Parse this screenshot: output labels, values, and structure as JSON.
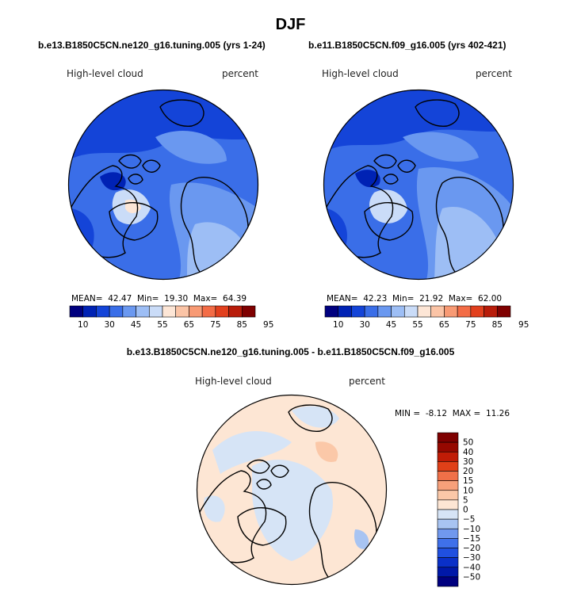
{
  "main_title": "DJF",
  "panels": [
    {
      "case_title": "b.e13.B1850C5CN.ne120_g16.tuning.005 (yrs 1-24)",
      "variable": "High-level cloud",
      "units": "percent",
      "stats": {
        "mean_label": "MEAN=",
        "mean": "42.47",
        "min_label": "Min=",
        "min": "19.30",
        "max_label": "Max=",
        "max": "64.39"
      }
    },
    {
      "case_title": "b.e11.B1850C5CN.f09_g16.005 (yrs 402-421)",
      "variable": "High-level cloud",
      "units": "percent",
      "stats": {
        "mean_label": "MEAN=",
        "mean": "42.23",
        "min_label": "Min=",
        "min": "21.92",
        "max_label": "Max=",
        "max": "62.00"
      }
    }
  ],
  "difference": {
    "title": "b.e13.B1850C5CN.ne120_g16.tuning.005 - b.e11.B1850C5CN.f09_g16.005",
    "variable": "High-level cloud",
    "units": "percent",
    "stats": {
      "min_label": "MIN =",
      "min": "-8.12",
      "max_label": "MAX =",
      "max": "11.26"
    }
  },
  "chart_data": [
    {
      "type": "heatmap",
      "projection": "north-polar-stereographic",
      "title": "b.e13.B1850C5CN.ne120_g16.tuning.005 (yrs 1-24)",
      "series": [
        {
          "name": "High-level cloud",
          "units": "percent",
          "mean": 42.47,
          "min": 19.3,
          "max": 64.39
        }
      ],
      "colorbar": {
        "orientation": "horizontal",
        "levels": [
          10,
          30,
          45,
          55,
          65,
          75,
          85,
          95
        ],
        "tick_labels": [
          "10",
          "30",
          "45",
          "55",
          "65",
          "75",
          "85",
          "95"
        ],
        "colors": [
          "#00007f",
          "#0022b4",
          "#1444d8",
          "#3a6ee8",
          "#6a98f0",
          "#9dbef5",
          "#cadcf8",
          "#fde6d6",
          "#fbc4a6",
          "#f89a74",
          "#f36c46",
          "#e2401e",
          "#b81c0a",
          "#7f0000"
        ]
      }
    },
    {
      "type": "heatmap",
      "projection": "north-polar-stereographic",
      "title": "b.e11.B1850C5CN.f09_g16.005 (yrs 402-421)",
      "series": [
        {
          "name": "High-level cloud",
          "units": "percent",
          "mean": 42.23,
          "min": 21.92,
          "max": 62.0
        }
      ],
      "colorbar": {
        "orientation": "horizontal",
        "levels": [
          10,
          30,
          45,
          55,
          65,
          75,
          85,
          95
        ],
        "tick_labels": [
          "10",
          "30",
          "45",
          "55",
          "65",
          "75",
          "85",
          "95"
        ],
        "colors": [
          "#00007f",
          "#0022b4",
          "#1444d8",
          "#3a6ee8",
          "#6a98f0",
          "#9dbef5",
          "#cadcf8",
          "#fde6d6",
          "#fbc4a6",
          "#f89a74",
          "#f36c46",
          "#e2401e",
          "#b81c0a",
          "#7f0000"
        ]
      }
    },
    {
      "type": "heatmap",
      "projection": "north-polar-stereographic",
      "title": "b.e13.B1850C5CN.ne120_g16.tuning.005 - b.e11.B1850C5CN.f09_g16.005",
      "series": [
        {
          "name": "High-level cloud",
          "units": "percent",
          "min": -8.12,
          "max": 11.26
        }
      ],
      "colorbar": {
        "orientation": "vertical",
        "levels": [
          -50,
          -40,
          -30,
          -20,
          -15,
          -10,
          -5,
          0,
          5,
          10,
          15,
          20,
          30,
          40,
          50
        ],
        "tick_labels": [
          "50",
          "40",
          "30",
          "20",
          "15",
          "10",
          "5",
          "0",
          "−5",
          "−10",
          "−15",
          "−20",
          "−30",
          "−40",
          "−50"
        ],
        "colors": [
          "#00007f",
          "#0018a8",
          "#0a30c8",
          "#2050e0",
          "#3f70ea",
          "#7098ee",
          "#a8c4f2",
          "#d6e4f6",
          "#fde6d4",
          "#fbc8a8",
          "#f7a07a",
          "#f07048",
          "#e04018",
          "#c01c06",
          "#960800",
          "#7f0000"
        ]
      }
    }
  ]
}
